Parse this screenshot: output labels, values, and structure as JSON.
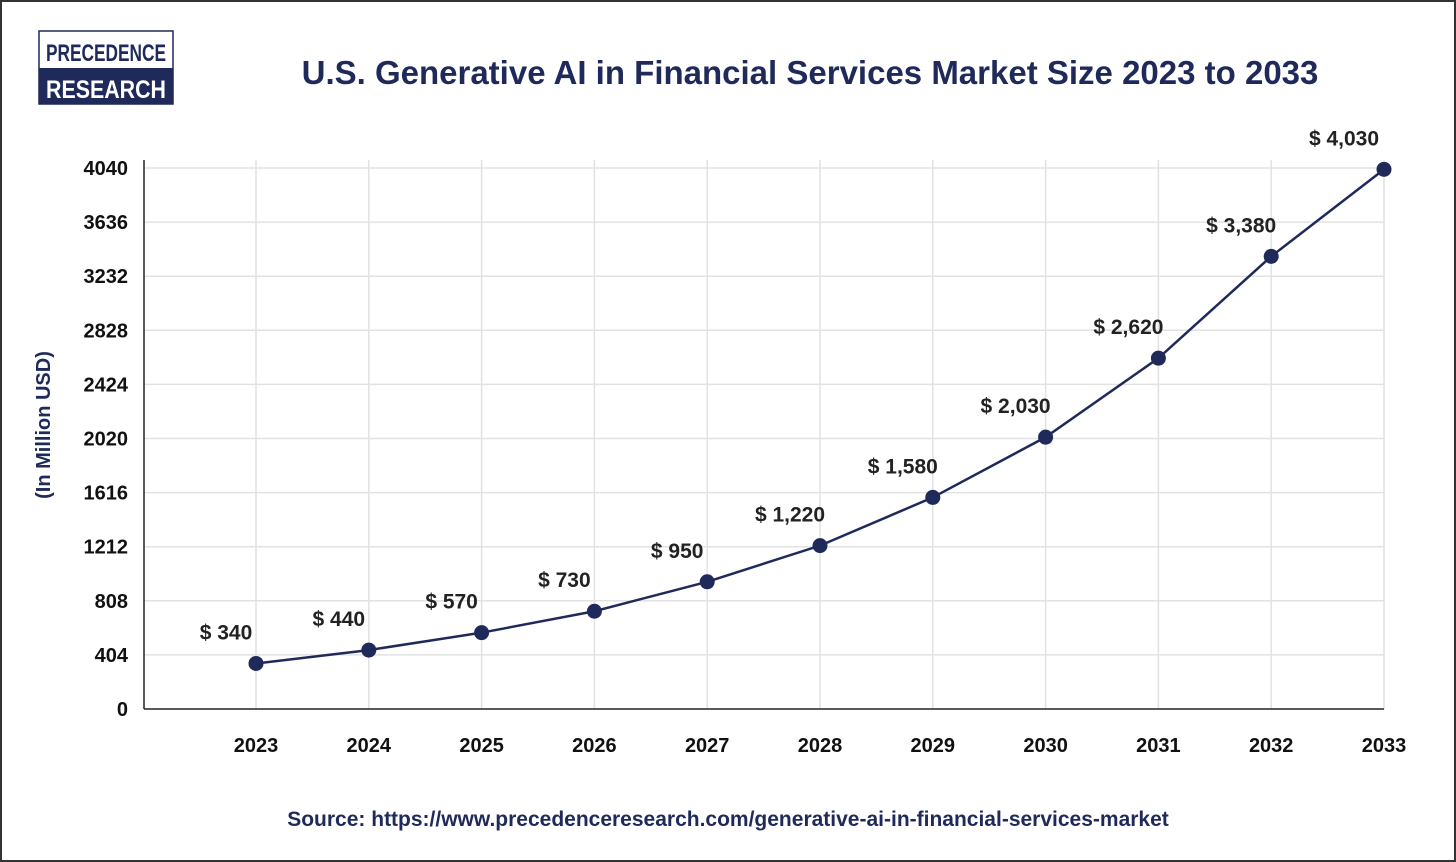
{
  "logo": {
    "line1": "PRECEDENCE",
    "line2": "RESEARCH"
  },
  "colors": {
    "navy": "#1f2a5a",
    "grid": "#e2e2e2",
    "text": "#111111"
  },
  "source": "Source: https://www.precedenceresearch.com/generative-ai-in-financial-services-market",
  "chart_data": {
    "type": "line",
    "title": "U.S. Generative AI in Financial Services Market Size 2023 to 2033",
    "xlabel": "",
    "ylabel": "(In Million USD)",
    "categories": [
      "2023",
      "2024",
      "2025",
      "2026",
      "2027",
      "2028",
      "2029",
      "2030",
      "2031",
      "2032",
      "2033"
    ],
    "values": [
      340,
      440,
      570,
      730,
      950,
      1220,
      1580,
      2030,
      2620,
      3380,
      4030
    ],
    "data_labels": [
      "$ 340",
      "$ 440",
      "$ 570",
      "$ 730",
      "$ 950",
      "$ 1,220",
      "$ 1,580",
      "$ 2,030",
      "$ 2,620",
      "$ 3,380",
      "$ 4,030"
    ],
    "yticks": [
      0,
      404,
      808,
      1212,
      1616,
      2020,
      2424,
      2828,
      3232,
      3636,
      4040
    ],
    "ylim": [
      0,
      4040
    ],
    "grid": true,
    "legend": "none"
  }
}
